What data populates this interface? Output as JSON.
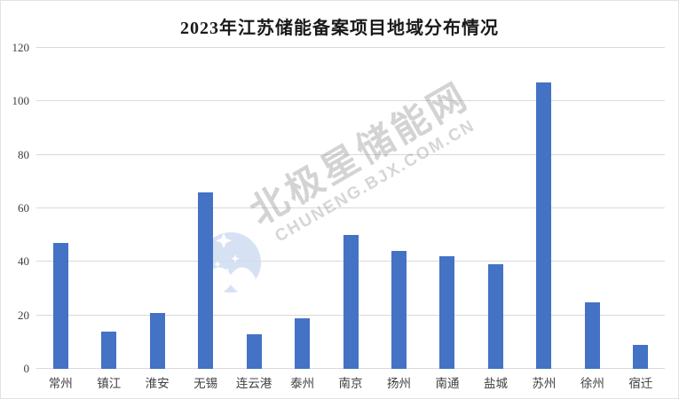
{
  "title": "2023年江苏储能备案项目地域分布情况",
  "watermark": {
    "line1": "北极星储能网",
    "line2": "CHUNENG.BJX.COM.CN",
    "logo": "bjx-star-bird-logo"
  },
  "colors": {
    "bar": "#4472C4",
    "gridline": "#D9D9D9",
    "axis_label": "#404040",
    "title_text": "#1A1A1A",
    "watermark_logo_fill": "#CFDEF2"
  },
  "chart_data": {
    "type": "bar",
    "title": "2023年江苏储能备案项目地域分布情况",
    "categories": [
      "常州",
      "镇江",
      "淮安",
      "无锡",
      "连云港",
      "泰州",
      "南京",
      "扬州",
      "南通",
      "盐城",
      "苏州",
      "徐州",
      "宿迁"
    ],
    "values": [
      47,
      14,
      21,
      66,
      13,
      19,
      50,
      44,
      42,
      39,
      107,
      25,
      9
    ],
    "xlabel": "",
    "ylabel": "",
    "ylim": [
      0,
      120
    ],
    "yticks": [
      0,
      20,
      40,
      60,
      80,
      100,
      120
    ],
    "grid": true,
    "legend": false,
    "bar_color": "#4472C4"
  }
}
